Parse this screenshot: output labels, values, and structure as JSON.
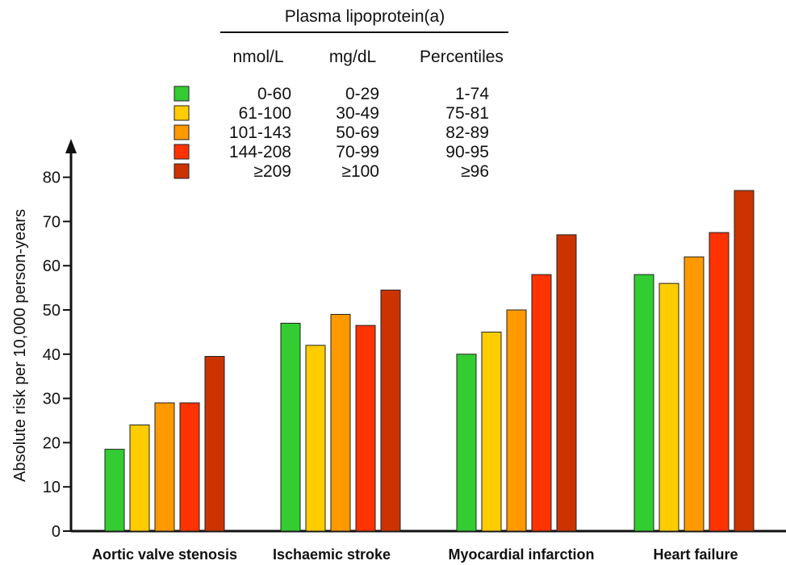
{
  "chart_data": {
    "type": "bar",
    "title": "",
    "xlabel": "",
    "ylabel": "Absolute risk per 10,000 person-years",
    "ylim": [
      0,
      85
    ],
    "yticks": [
      0,
      10,
      20,
      30,
      40,
      50,
      60,
      70,
      80
    ],
    "grid": false,
    "legend_position": "top-center",
    "categories": [
      "Aortic valve stenosis",
      "Ischaemic stroke",
      "Myocardial infarction",
      "Heart failure"
    ],
    "series": [
      {
        "color": "#33cc33",
        "values": [
          18.5,
          47,
          40,
          58
        ]
      },
      {
        "color": "#ffcc00",
        "values": [
          24,
          42,
          45,
          56
        ]
      },
      {
        "color": "#ff9900",
        "values": [
          29,
          49,
          50,
          62
        ]
      },
      {
        "color": "#ff3300",
        "values": [
          29,
          46.5,
          58,
          67.5
        ]
      },
      {
        "color": "#cc3300",
        "values": [
          39.5,
          54.5,
          67,
          77
        ]
      }
    ],
    "legend": {
      "title": "Plasma lipoprotein(a)",
      "columns": [
        "nmol/L",
        "mg/dL",
        "Percentiles"
      ],
      "rows": [
        [
          "0-60",
          "0-29",
          "1-74"
        ],
        [
          "61-100",
          "30-49",
          "75-81"
        ],
        [
          "101-143",
          "50-69",
          "82-89"
        ],
        [
          "144-208",
          "70-99",
          "90-95"
        ],
        [
          "≥209",
          "≥100",
          "≥96"
        ]
      ]
    }
  }
}
